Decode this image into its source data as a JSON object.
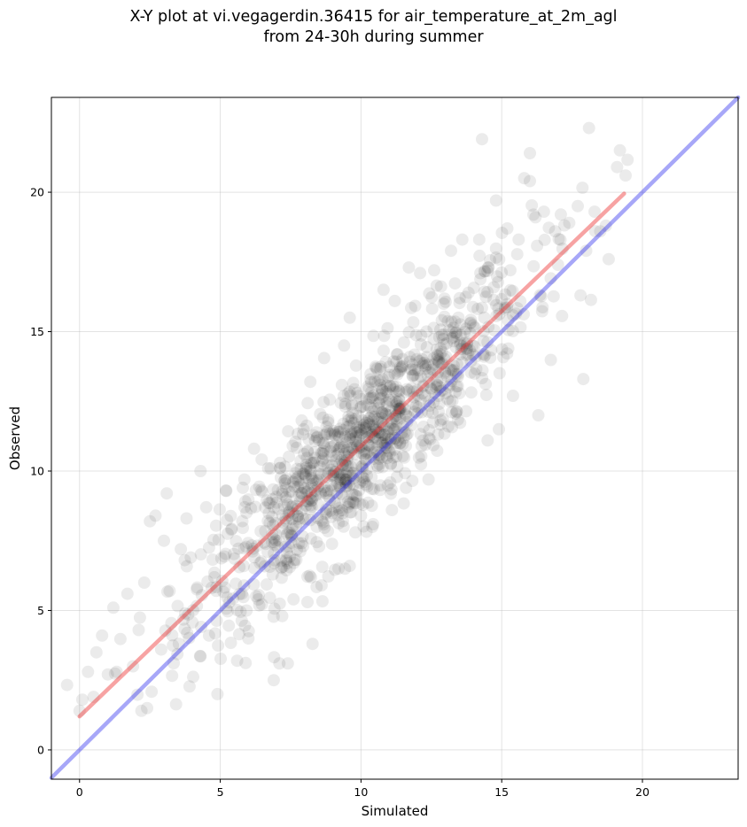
{
  "chart_data": {
    "type": "scatter",
    "title": "X-Y plot at vi.vegagerdin.36415 for air_temperature_at_2m_agl",
    "subtitle": "from 24-30h during summer",
    "xlabel": "Simulated",
    "ylabel": "Observed",
    "xlim": [
      -1.0,
      23.4
    ],
    "ylim": [
      -1.05,
      23.4
    ],
    "xticks": [
      0,
      5,
      10,
      15,
      20
    ],
    "yticks": [
      0,
      5,
      10,
      15,
      20
    ],
    "grid": true,
    "marker_color": "#000000",
    "marker_alpha": 0.08,
    "points_note_count": 1100,
    "points_outliers": [
      [
        0.0,
        1.4
      ],
      [
        0.1,
        1.8
      ],
      [
        0.3,
        2.8
      ],
      [
        0.6,
        3.5
      ],
      [
        0.8,
        4.1
      ],
      [
        0.5,
        1.9
      ],
      [
        1.2,
        5.1
      ],
      [
        1.7,
        5.6
      ],
      [
        2.3,
        6.0
      ],
      [
        2.5,
        8.2
      ],
      [
        2.7,
        8.4
      ],
      [
        3.1,
        9.2
      ],
      [
        3.0,
        7.5
      ],
      [
        3.6,
        7.2
      ],
      [
        3.8,
        8.3
      ],
      [
        2.1,
        4.3
      ],
      [
        2.2,
        1.4
      ],
      [
        1.9,
        3.0
      ],
      [
        2.4,
        1.5
      ],
      [
        2.9,
        3.6
      ],
      [
        4.3,
        10.0
      ],
      [
        4.5,
        8.7
      ],
      [
        3.2,
        5.7
      ],
      [
        4.9,
        2.0
      ],
      [
        4.6,
        4.1
      ],
      [
        5.6,
        3.2
      ],
      [
        6.0,
        4.0
      ],
      [
        6.2,
        10.8
      ],
      [
        5.2,
        9.3
      ],
      [
        5.8,
        9.4
      ],
      [
        6.7,
        10.1
      ],
      [
        7.4,
        3.1
      ],
      [
        6.9,
        2.5
      ],
      [
        7.1,
        3.1
      ],
      [
        8.2,
        13.2
      ],
      [
        9.6,
        15.5
      ],
      [
        9.4,
        14.5
      ],
      [
        10.8,
        16.5
      ],
      [
        11.2,
        16.1
      ],
      [
        11.7,
        17.3
      ],
      [
        12.1,
        17.1
      ],
      [
        12.6,
        17.2
      ],
      [
        13.2,
        17.9
      ],
      [
        13.6,
        18.3
      ],
      [
        14.2,
        18.3
      ],
      [
        14.3,
        21.9
      ],
      [
        15.2,
        18.7
      ],
      [
        15.6,
        18.3
      ],
      [
        15.8,
        20.5
      ],
      [
        16.0,
        21.4
      ],
      [
        16.0,
        20.4
      ],
      [
        16.5,
        19.3
      ],
      [
        17.1,
        19.2
      ],
      [
        17.4,
        18.9
      ],
      [
        18.1,
        22.3
      ],
      [
        17.7,
        19.5
      ],
      [
        18.3,
        19.3
      ],
      [
        19.2,
        21.5
      ],
      [
        19.1,
        20.9
      ],
      [
        19.4,
        20.6
      ],
      [
        18.8,
        17.6
      ],
      [
        18.7,
        18.8
      ],
      [
        18.0,
        17.9
      ],
      [
        17.8,
        16.3
      ],
      [
        17.9,
        13.3
      ],
      [
        16.3,
        12.0
      ],
      [
        15.4,
        12.7
      ],
      [
        14.9,
        11.5
      ],
      [
        14.5,
        11.1
      ],
      [
        13.1,
        11.6
      ],
      [
        12.4,
        9.7
      ],
      [
        11.6,
        9.4
      ],
      [
        11.1,
        8.6
      ],
      [
        10.4,
        8.0
      ],
      [
        9.8,
        7.8
      ],
      [
        10.0,
        8.4
      ],
      [
        9.6,
        6.6
      ],
      [
        9.2,
        6.5
      ],
      [
        8.6,
        5.9
      ],
      [
        8.1,
        5.3
      ],
      [
        7.6,
        5.4
      ],
      [
        7.2,
        4.8
      ],
      [
        16.9,
        18.6
      ],
      [
        16.2,
        19.1
      ],
      [
        18.5,
        18.6
      ],
      [
        17.0,
        17.4
      ],
      [
        14.8,
        19.7
      ]
    ],
    "fit_line": {
      "color": "#ee3333",
      "alpha": 0.45,
      "x": [
        0.0,
        19.35
      ],
      "y": [
        1.2,
        19.95
      ]
    },
    "identity_line": {
      "color": "#2222ee",
      "alpha": 0.4,
      "x": [
        -1.0,
        23.4
      ],
      "y": [
        -1.0,
        23.4
      ]
    }
  }
}
